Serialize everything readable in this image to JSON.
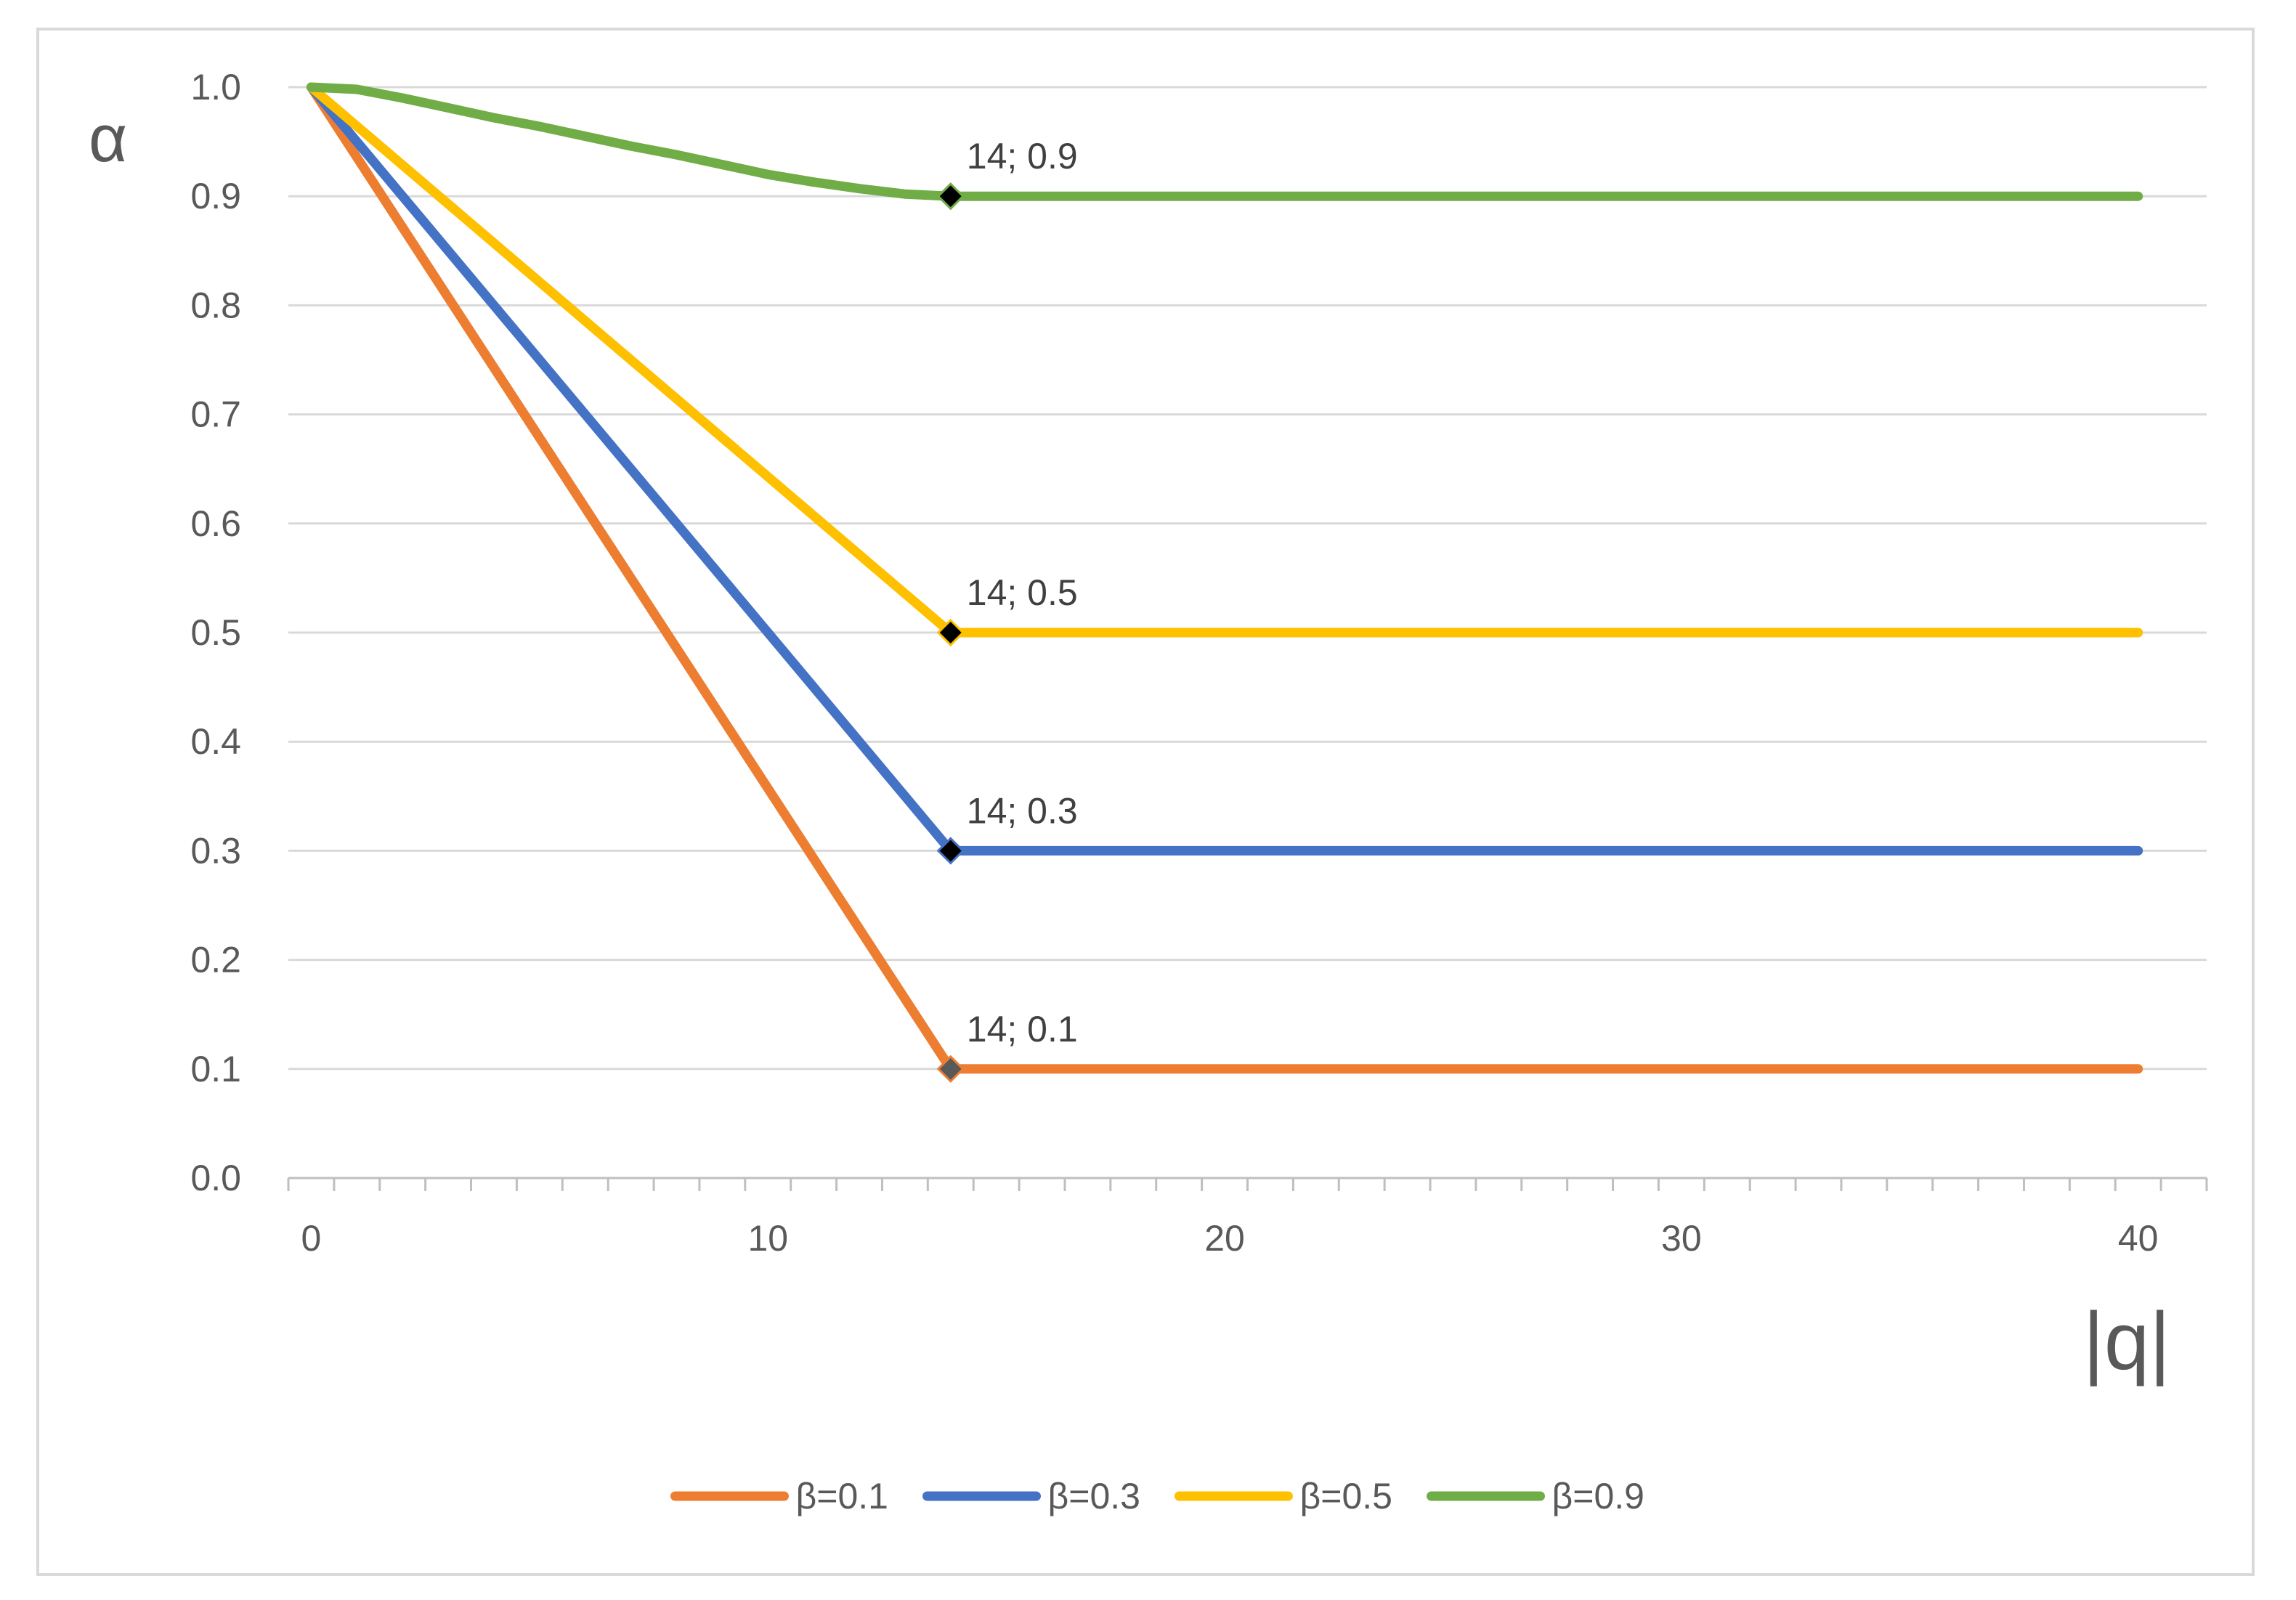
{
  "chart_data": {
    "type": "line",
    "title": "",
    "xlabel": "|q|",
    "ylabel": "α",
    "xlim": [
      -0.5,
      41.5
    ],
    "ylim": [
      0,
      1
    ],
    "x_ticks": [
      0,
      10,
      20,
      30,
      40
    ],
    "x_tick_labels": [
      "0",
      "10",
      "20",
      "30",
      "40"
    ],
    "y_ticks": [
      0,
      0.1,
      0.2,
      0.3,
      0.4,
      0.5,
      0.6,
      0.7,
      0.8,
      0.9,
      1.0
    ],
    "y_tick_labels": [
      "0.0",
      "0.1",
      "0.2",
      "0.3",
      "0.4",
      "0.5",
      "0.6",
      "0.7",
      "0.8",
      "0.9",
      "1.0"
    ],
    "grid": true,
    "legend_position": "bottom",
    "series": [
      {
        "name": "β=0.1",
        "color": "#ED7D31",
        "x": [
          0,
          14,
          40
        ],
        "y": [
          1.0,
          0.1,
          0.1
        ],
        "marker": {
          "x": 14,
          "y": 0.1,
          "label": "14; 0.1",
          "color": "#595959"
        }
      },
      {
        "name": "β=0.3",
        "color": "#4472C4",
        "x": [
          0,
          14,
          40
        ],
        "y": [
          1.0,
          0.3,
          0.3
        ],
        "marker": {
          "x": 14,
          "y": 0.3,
          "label": "14; 0.3",
          "color": "#000000"
        }
      },
      {
        "name": "β=0.5",
        "color": "#FFC000",
        "x": [
          0,
          14,
          40
        ],
        "y": [
          1.0,
          0.5,
          0.5
        ],
        "marker": {
          "x": 14,
          "y": 0.5,
          "label": "14; 0.5",
          "color": "#000000"
        }
      },
      {
        "name": "β=0.9",
        "color": "#70AD47",
        "x": [
          0,
          1,
          2,
          3,
          4,
          5,
          6,
          7,
          8,
          9,
          10,
          11,
          12,
          13,
          14,
          40
        ],
        "y": [
          1.0,
          0.998,
          0.99,
          0.981,
          0.972,
          0.964,
          0.955,
          0.946,
          0.938,
          0.929,
          0.92,
          0.913,
          0.907,
          0.902,
          0.9,
          0.9
        ],
        "marker": {
          "x": 14,
          "y": 0.9,
          "label": "14; 0.9",
          "color": "#000000"
        }
      }
    ]
  }
}
